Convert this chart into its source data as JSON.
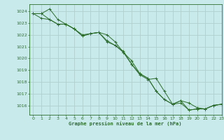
{
  "title": "Graphe pression niveau de la mer (hPa)",
  "bg_color": "#c8eaea",
  "grid_color": "#b0cfcf",
  "line_color": "#2d6e2d",
  "marker_color": "#2d6e2d",
  "xlim": [
    -0.5,
    23
  ],
  "ylim": [
    1015.2,
    1024.6
  ],
  "xticks": [
    0,
    1,
    2,
    3,
    4,
    5,
    6,
    7,
    8,
    9,
    10,
    11,
    12,
    13,
    14,
    15,
    16,
    17,
    18,
    19,
    20,
    21,
    22,
    23
  ],
  "yticks": [
    1016,
    1017,
    1018,
    1019,
    1020,
    1021,
    1022,
    1023,
    1024
  ],
  "series": [
    [
      1023.8,
      1023.8,
      1024.2,
      1023.3,
      1022.9,
      1022.5,
      1021.9,
      1022.1,
      1022.2,
      1021.5,
      1021.1,
      1020.6,
      1019.5,
      1018.6,
      1018.2,
      1018.3,
      1017.2,
      1016.1,
      1016.2,
      1015.6,
      1015.7,
      1015.7,
      1016.0,
      1016.1
    ],
    [
      1023.8,
      1023.8,
      1023.3,
      1022.9,
      1022.9,
      1022.5,
      1021.9,
      1022.1,
      1022.2,
      1022.0,
      1021.4,
      1020.5,
      1019.8,
      1018.7,
      1018.3,
      1017.2,
      1016.5,
      1016.1,
      1016.4,
      1016.2,
      1015.8,
      1015.7,
      1016.0,
      1016.1
    ],
    [
      1023.8,
      1023.4,
      1023.3,
      1022.9,
      1022.9,
      1022.5,
      1022.0,
      1022.1,
      1022.2,
      1021.4,
      1021.1,
      1020.5,
      1019.5,
      1018.7,
      1018.3,
      1017.2,
      1016.5,
      1016.1,
      1016.4,
      1015.6,
      1015.7,
      1015.7,
      1016.0,
      1016.1
    ]
  ]
}
